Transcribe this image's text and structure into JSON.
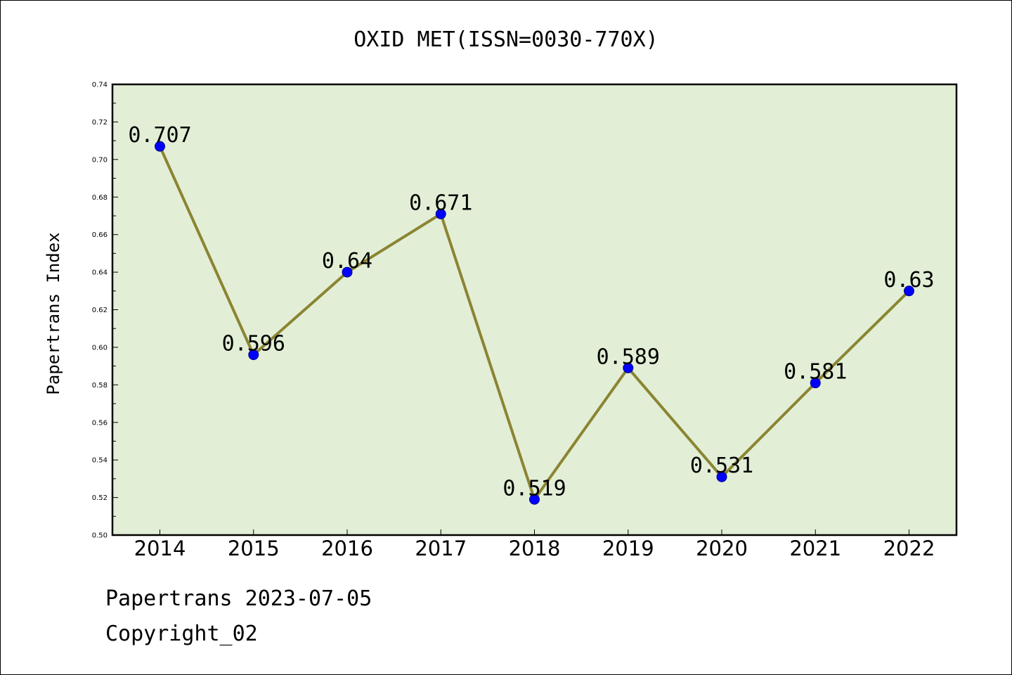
{
  "chart_data": {
    "type": "line",
    "title": "OXID MET(ISSN=0030-770X)",
    "xlabel": "",
    "ylabel": "Papertrans Index",
    "categories": [
      "2014",
      "2015",
      "2016",
      "2017",
      "2018",
      "2019",
      "2020",
      "2021",
      "2022"
    ],
    "series": [
      {
        "values": [
          0.707,
          0.596,
          0.64,
          0.671,
          0.519,
          0.589,
          0.531,
          0.581,
          0.63
        ],
        "labels": [
          "0.707",
          "0.596",
          "0.64",
          "0.671",
          "0.519",
          "0.589",
          "0.531",
          "0.581",
          "0.63"
        ]
      }
    ],
    "ylim": [
      0.5,
      0.74
    ],
    "yticks": [
      "0.50",
      "0.52",
      "0.54",
      "0.56",
      "0.58",
      "0.60",
      "0.62",
      "0.64",
      "0.66",
      "0.68",
      "0.70",
      "0.72",
      "0.74"
    ],
    "grid": false,
    "legend": "none",
    "colors": {
      "plot_background": "#e2efd6",
      "line": "#8b8432",
      "marker": "#0000ff",
      "marker_edge": "#00008b"
    }
  },
  "footer": {
    "line1": "Papertrans 2023-07-05",
    "line2": "Copyright_02"
  }
}
